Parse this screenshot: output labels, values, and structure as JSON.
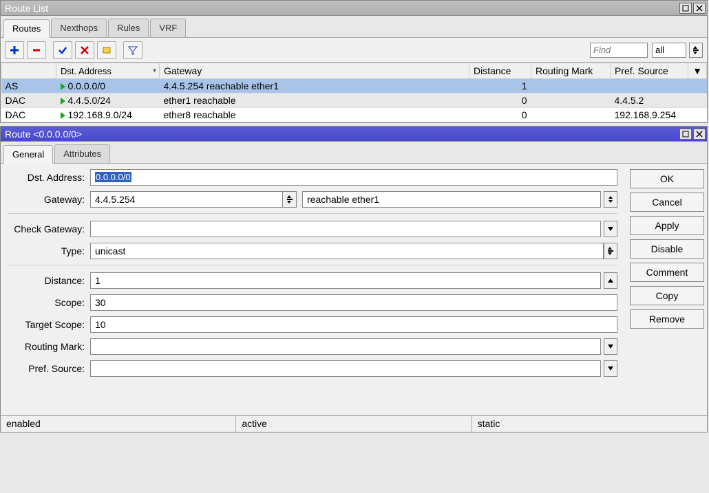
{
  "routeList": {
    "title": "Route List",
    "tabs": [
      "Routes",
      "Nexthops",
      "Rules",
      "VRF"
    ],
    "activeTab": 0,
    "find_placeholder": "Find",
    "filter_value": "all",
    "columns": {
      "flags": "",
      "dst": "Dst. Address",
      "gw": "Gateway",
      "dist": "Distance",
      "rmark": "Routing Mark",
      "psrc": "Pref. Source"
    },
    "rows": [
      {
        "flags": "AS",
        "dst": "0.0.0.0/0",
        "gw": "4.4.5.254 reachable ether1",
        "dist": "1",
        "rmark": "",
        "psrc": "",
        "selected": true
      },
      {
        "flags": "DAC",
        "dst": "4.4.5.0/24",
        "gw": "ether1 reachable",
        "dist": "0",
        "rmark": "",
        "psrc": "4.4.5.2",
        "selected": false
      },
      {
        "flags": "DAC",
        "dst": "192.168.9.0/24",
        "gw": "ether8 reachable",
        "dist": "0",
        "rmark": "",
        "psrc": "192.168.9.254",
        "selected": false
      }
    ]
  },
  "routeDetail": {
    "title": "Route <0.0.0.0/0>",
    "tabs": [
      "General",
      "Attributes"
    ],
    "activeTab": 0,
    "labels": {
      "dst": "Dst. Address:",
      "gw": "Gateway:",
      "chk": "Check Gateway:",
      "type": "Type:",
      "dist": "Distance:",
      "scope": "Scope:",
      "tscope": "Target Scope:",
      "rmark": "Routing Mark:",
      "psrc": "Pref. Source:"
    },
    "values": {
      "dst": "0.0.0.0/0",
      "gw": "4.4.5.254",
      "gw_status": "reachable ether1",
      "chk": "",
      "type": "unicast",
      "dist": "1",
      "scope": "30",
      "tscope": "10",
      "rmark": "",
      "psrc": ""
    },
    "buttons": {
      "ok": "OK",
      "cancel": "Cancel",
      "apply": "Apply",
      "disable": "Disable",
      "comment": "Comment",
      "copy": "Copy",
      "remove": "Remove"
    },
    "status": {
      "s1": "enabled",
      "s2": "active",
      "s3": "static"
    }
  },
  "colors": {
    "selected_row": "#a8c4e8",
    "titlebar_blue": "#4848c8",
    "green_triangle": "#11aa11"
  }
}
